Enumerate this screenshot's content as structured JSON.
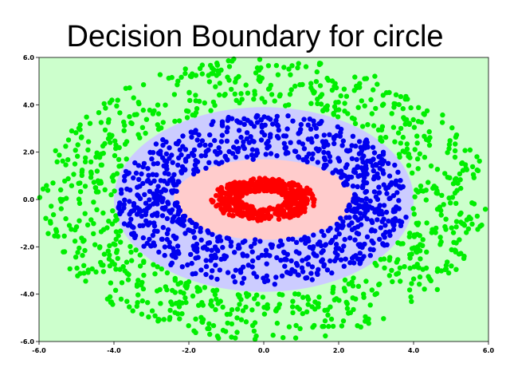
{
  "chart_data": {
    "type": "scatter",
    "title": "Decision Boundary for circle",
    "xlabel": "",
    "ylabel": "",
    "xlim": [
      -6.0,
      6.0
    ],
    "ylim": [
      -6.0,
      6.0
    ],
    "x_ticks": [
      "-6.0",
      "-4.0",
      "-2.0",
      "0.0",
      "2.0",
      "4.0",
      "6.0"
    ],
    "y_ticks": [
      "6.0",
      "4.0",
      "2.0",
      "0.0",
      "-2.0",
      "-4.0",
      "-6.0"
    ],
    "grid": false,
    "legend": "none",
    "decision_regions": [
      {
        "class": "outer",
        "color": "#ccffcc",
        "region": "|r| > ~3.9"
      },
      {
        "class": "middle",
        "color": "#ccccff",
        "inner_radii": [
          2.4,
          1.7
        ],
        "outer_radii": [
          4.0,
          3.9
        ]
      },
      {
        "class": "inner",
        "color": "#ffcccc",
        "outer_radii": [
          2.4,
          1.7
        ]
      }
    ],
    "series": [
      {
        "color": "#00ee00",
        "shape": "ring",
        "center": [
          0,
          0
        ],
        "radius_range": [
          4.0,
          6.0
        ],
        "count": 900
      },
      {
        "color": "#0000ee",
        "shape": "ring",
        "center": [
          0,
          0
        ],
        "radius_x_range": [
          2.3,
          3.9
        ],
        "radius_y_range": [
          1.7,
          3.6
        ],
        "count": 900
      },
      {
        "color": "#ff0000",
        "shape": "ring",
        "center": [
          0,
          0
        ],
        "radius_x_range": [
          0.6,
          1.4
        ],
        "radius_y_range": [
          0.35,
          0.9
        ],
        "count": 500
      }
    ]
  }
}
